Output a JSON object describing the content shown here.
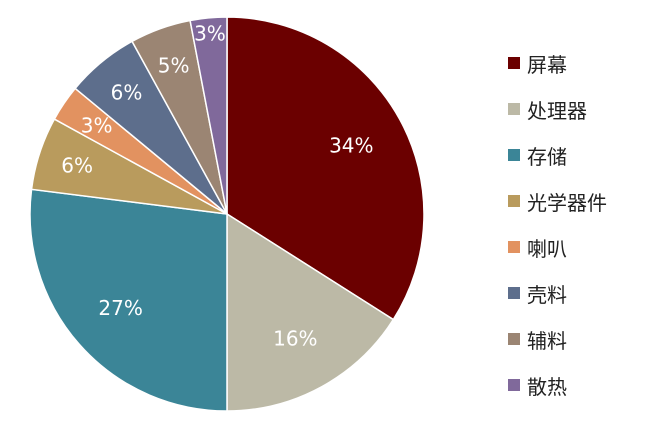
{
  "chart_data": {
    "type": "pie",
    "title": "",
    "legend_position": "right",
    "categories": [
      "屏幕",
      "处理器",
      "存储",
      "光学器件",
      "喇叭",
      "壳料",
      "辅料",
      "散热"
    ],
    "values": [
      34,
      16,
      27,
      6,
      3,
      6,
      5,
      3
    ],
    "labels": [
      "34%",
      "16%",
      "27%",
      "6%",
      "3%",
      "6%",
      "5%",
      "3%"
    ],
    "colors": [
      "#6b0000",
      "#bcb9a6",
      "#3b8597",
      "#b99b5d",
      "#e29260",
      "#5d6e8c",
      "#9b8573",
      "#80699b"
    ]
  }
}
